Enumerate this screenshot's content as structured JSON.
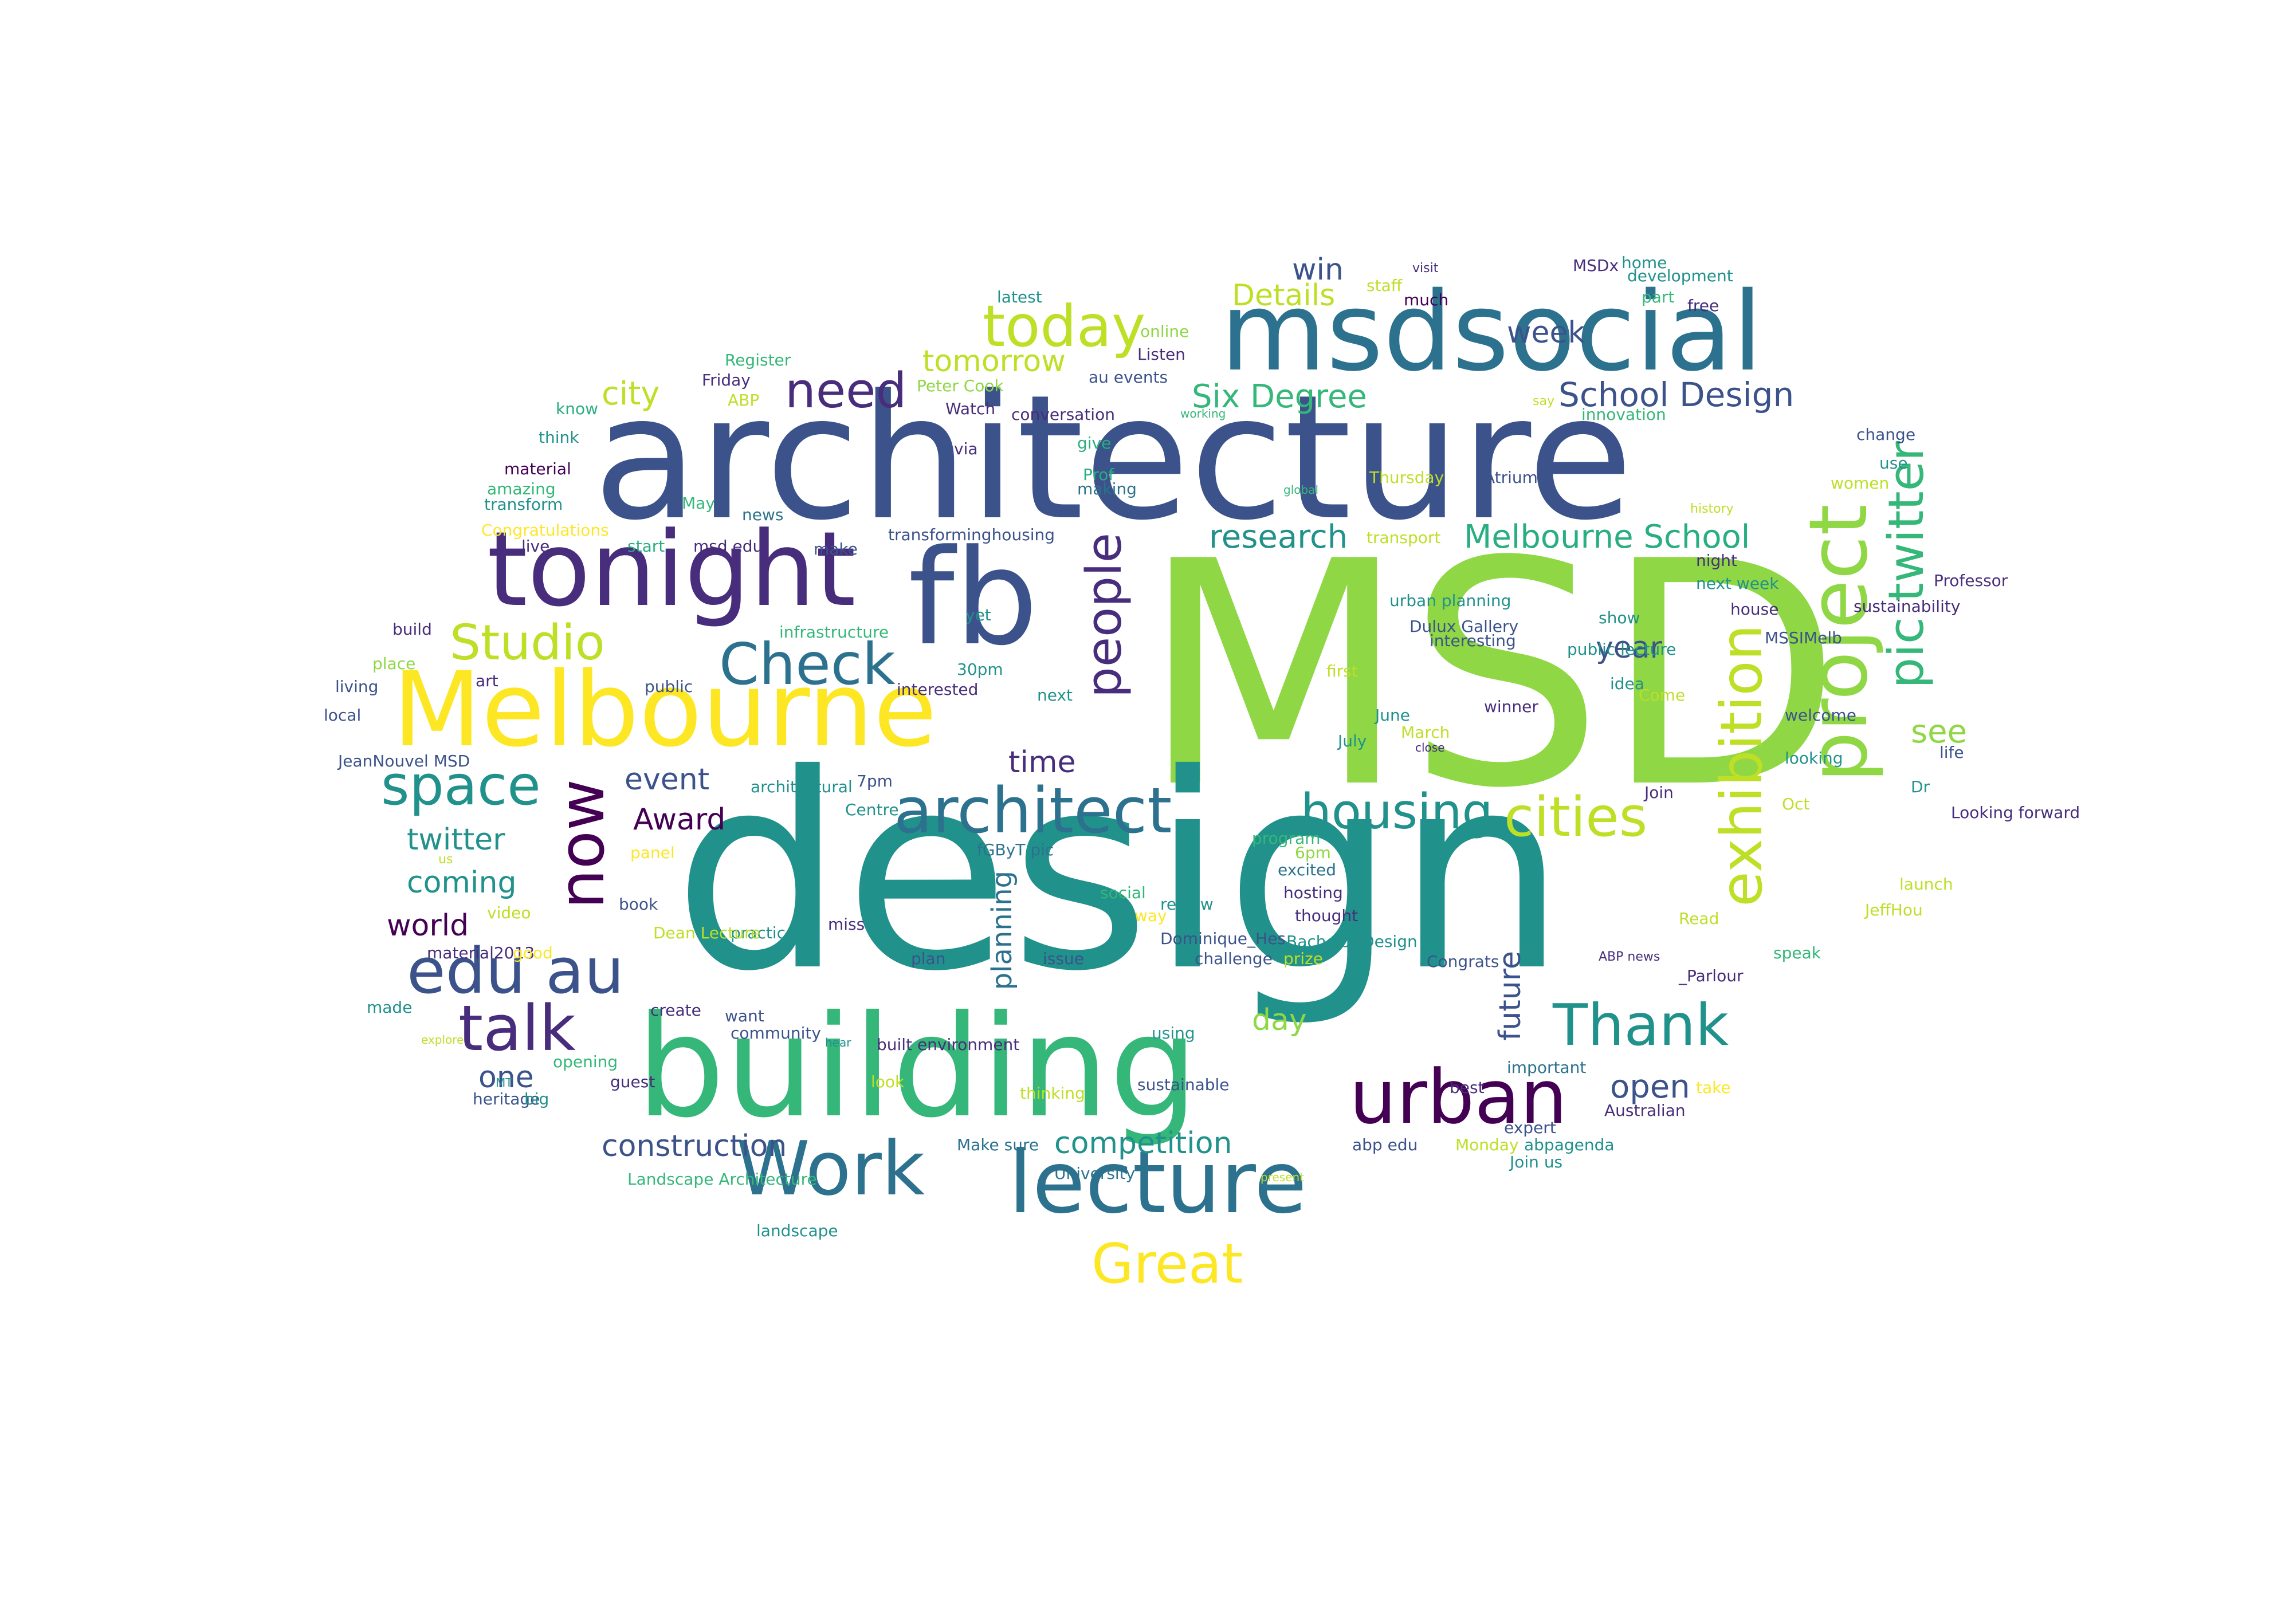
{
  "palette": {
    "lime": "#8fd744",
    "teal": "#21918c",
    "indigo": "#3b528b",
    "purple": "#472d7b",
    "yellow": "#fde725",
    "green": "#35b779",
    "dark": "#440154",
    "yellowgreen": "#bddf26",
    "blue": "#2c728e",
    "seagreen": "#28ae80"
  },
  "words": [
    {
      "text": "MSD"
    },
    {
      "text": "design"
    },
    {
      "text": "architecture"
    },
    {
      "text": "building"
    },
    {
      "text": "msdsocial"
    },
    {
      "text": "fb"
    },
    {
      "text": "tonight"
    },
    {
      "text": "Melbourne"
    },
    {
      "text": "project"
    },
    {
      "text": "lecture"
    },
    {
      "text": "Work"
    },
    {
      "text": "urban"
    },
    {
      "text": "architect"
    },
    {
      "text": "edu au"
    },
    {
      "text": "now"
    },
    {
      "text": "talk"
    },
    {
      "text": "today"
    },
    {
      "text": "Thank"
    },
    {
      "text": "people"
    },
    {
      "text": "exhibition"
    },
    {
      "text": "pic twitter"
    },
    {
      "text": "Check"
    },
    {
      "text": "space"
    },
    {
      "text": "housing"
    },
    {
      "text": "cities"
    },
    {
      "text": "Great"
    },
    {
      "text": "Studio"
    },
    {
      "text": "need"
    },
    {
      "text": "School Design"
    },
    {
      "text": "Six Degree"
    },
    {
      "text": "Melbourne School"
    },
    {
      "text": "research"
    },
    {
      "text": "tomorrow"
    },
    {
      "text": "Details"
    },
    {
      "text": "win"
    },
    {
      "text": "week"
    },
    {
      "text": "city"
    },
    {
      "text": "year"
    },
    {
      "text": "see"
    },
    {
      "text": "competition"
    },
    {
      "text": "construction"
    },
    {
      "text": "open"
    },
    {
      "text": "event"
    },
    {
      "text": "Award"
    },
    {
      "text": "twitter"
    },
    {
      "text": "coming"
    },
    {
      "text": "world"
    },
    {
      "text": "time"
    },
    {
      "text": "day"
    },
    {
      "text": "future"
    },
    {
      "text": "planning"
    },
    {
      "text": "one"
    }
  ],
  "small_words": [
    "latest",
    "online",
    "staff",
    "visit",
    "MSDx",
    "home",
    "development",
    "Register",
    "Listen",
    "much",
    "part",
    "free",
    "Friday",
    "Peter Cook",
    "au events",
    "ABP",
    "know",
    "Watch",
    "conversation",
    "say",
    "innovation",
    "working",
    "think",
    "give",
    "change",
    "material",
    "via",
    "Prof",
    "Thursday",
    "Atrium",
    "use",
    "amazing",
    "transform",
    "making",
    "global",
    "women",
    "May",
    "news",
    "history",
    "Congratulations",
    "start",
    "msd edu",
    "make",
    "transforminghousing",
    "transport",
    "live",
    "night",
    "next week",
    "Professor",
    "urban planning",
    "house",
    "build",
    "infrastructure",
    "yet",
    "Dulux Gallery",
    "interesting",
    "show",
    "place",
    "art",
    "living",
    "public",
    "interested",
    "30pm",
    "next",
    "first",
    "winner",
    "idea",
    "public lecture",
    "sustainability",
    "MSSIMelb",
    "welcome",
    "June",
    "July",
    "March",
    "Come",
    "local",
    "close",
    "looking",
    "life",
    "JeanNouvel MSD",
    "7pm",
    "architectural",
    "Centre",
    "Join",
    "Dr",
    "Looking forward",
    "program",
    "6pm",
    "panel",
    "fGByT pic",
    "excited",
    "hosting",
    "us",
    "social",
    "review",
    "launch",
    "book",
    "thought",
    "JeffHou",
    "video",
    "way",
    "Bachelor Design",
    "Oct",
    "Read",
    "practice",
    "Dominique_Hes",
    "Dean Lecture",
    "miss",
    "material2013",
    "good",
    "plan",
    "issue",
    "challenge",
    "prize",
    "Congrats",
    "speak",
    "ABP news",
    "made",
    "create",
    "want",
    "_Parlour",
    "community",
    "using",
    "explore",
    "opening",
    "hear",
    "built environment",
    "important",
    "MT",
    "guest",
    "look",
    "sustainable",
    "best",
    "take",
    "heritage",
    "big",
    "thinking",
    "abp edu",
    "Australian",
    "expert",
    "Monday",
    "abpagenda",
    "Make sure",
    "University",
    "Join us",
    "Landscape Architecture",
    "present",
    "landscape"
  ]
}
